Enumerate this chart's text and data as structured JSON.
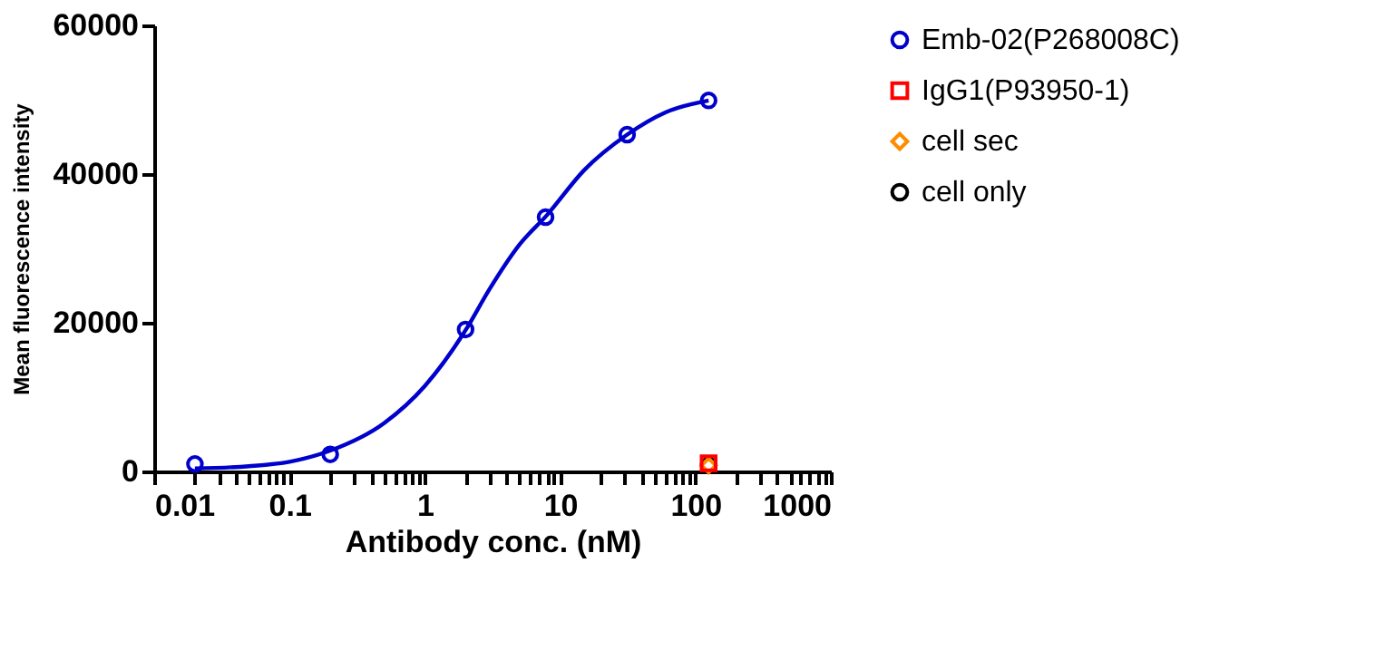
{
  "chart_data": {
    "type": "scatter",
    "xlabel": "Antibody conc. (nM)",
    "ylabel": "Mean fluorescence intensity",
    "xlim": [
      0.01,
      1000
    ],
    "ylim": [
      0,
      60000
    ],
    "log": "x",
    "grid": false,
    "legend": "right",
    "xticks": [
      0.01,
      {
        "value": 0.02,
        "label": null
      },
      {
        "value": 0.03,
        "label": null
      },
      {
        "value": 0.04,
        "label": null
      },
      {
        "value": 0.05,
        "label": null
      },
      {
        "value": 0.06,
        "label": null
      },
      {
        "value": 0.07,
        "label": null
      },
      {
        "value": 0.08,
        "label": null
      },
      {
        "value": 0.09,
        "label": null
      },
      0.1,
      {
        "value": 0.2,
        "label": null
      },
      {
        "value": 0.3,
        "label": null
      },
      {
        "value": 0.4,
        "label": null
      },
      {
        "value": 0.5,
        "label": null
      },
      {
        "value": 0.6,
        "label": null
      },
      {
        "value": 0.7,
        "label": null
      },
      {
        "value": 0.8,
        "label": null
      },
      {
        "value": 0.9,
        "label": null
      },
      1,
      {
        "value": 2,
        "label": null
      },
      {
        "value": 3,
        "label": null
      },
      {
        "value": 4,
        "label": null
      },
      {
        "value": 5,
        "label": null
      },
      {
        "value": 6,
        "label": null
      },
      {
        "value": 7,
        "label": null
      },
      {
        "value": 8,
        "label": null
      },
      {
        "value": 9,
        "label": null
      },
      10,
      {
        "value": 20,
        "label": null
      },
      {
        "value": 30,
        "label": null
      },
      {
        "value": 40,
        "label": null
      },
      {
        "value": 50,
        "label": null
      },
      {
        "value": 60,
        "label": null
      },
      {
        "value": 70,
        "label": null
      },
      {
        "value": 80,
        "label": null
      },
      {
        "value": 90,
        "label": null
      },
      100,
      {
        "value": 200,
        "label": null
      },
      {
        "value": 300,
        "label": null
      },
      {
        "value": 400,
        "label": null
      },
      {
        "value": 500,
        "label": null
      },
      {
        "value": 600,
        "label": null
      },
      {
        "value": 700,
        "label": null
      },
      {
        "value": 800,
        "label": null
      },
      {
        "value": 900,
        "label": null
      },
      1000
    ],
    "yticks": [
      0,
      20000,
      40000,
      60000
    ],
    "series": [
      {
        "name": "Emb-02(P268008C)",
        "type": "scatter",
        "marker": "circle",
        "color": "#0000cc",
        "x": [
          0.02,
          0.2,
          2,
          7.8,
          31.25,
          125
        ],
        "values": [
          1000,
          2300,
          19100,
          34200,
          45300,
          49900
        ]
      },
      {
        "name": "IgG1(P93950-1)",
        "type": "scatter",
        "marker": "square",
        "color": "#ff0000",
        "x": [
          125
        ],
        "values": [
          1100
        ]
      },
      {
        "name": "cell sec",
        "type": "scatter",
        "marker": "diamond",
        "color": "#ff8c00",
        "x": [
          125
        ],
        "values": [
          800
        ]
      },
      {
        "name": "cell only",
        "type": "scatter",
        "marker": "circle",
        "color": "#000000",
        "x": [
          125
        ],
        "values": [
          800
        ]
      },
      {
        "type": "line",
        "color": "#0000cc",
        "line_style": "solid",
        "x": [
          0.02,
          0.05,
          0.1,
          0.2,
          0.5,
          1,
          2,
          3,
          5,
          8,
          15,
          31.25,
          60,
          125
        ],
        "values": [
          400,
          700,
          1300,
          2800,
          6500,
          11500,
          19000,
          24500,
          30500,
          34500,
          40500,
          45300,
          48300,
          49900
        ]
      }
    ]
  }
}
